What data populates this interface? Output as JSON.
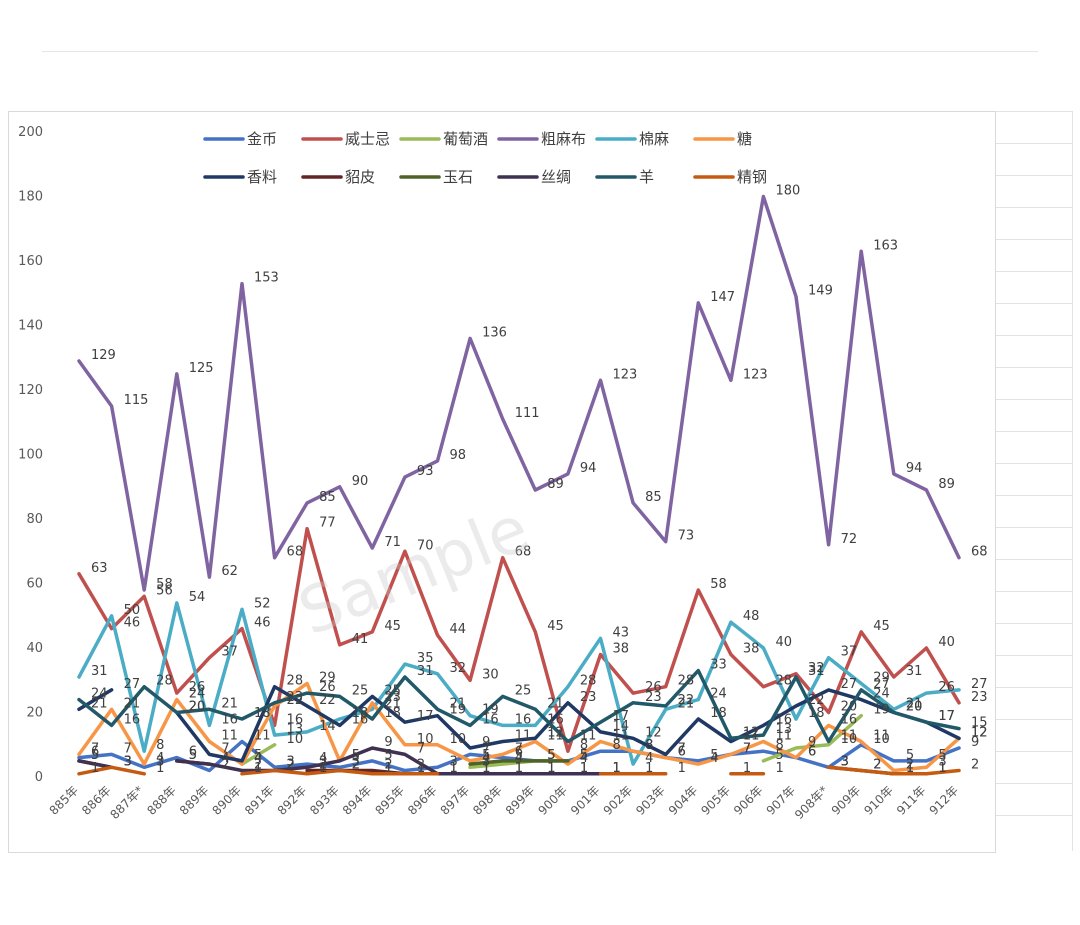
{
  "watermark": "Sample",
  "chart_data": {
    "type": "line",
    "title": "",
    "xlabel": "",
    "ylabel": "",
    "ylim": [
      0,
      200
    ],
    "yticks": [
      0,
      20,
      40,
      60,
      80,
      100,
      120,
      140,
      160,
      180,
      200
    ],
    "grid": false,
    "legend_position": "top",
    "categories": [
      "885年",
      "886年",
      "887年*",
      "888年",
      "889年",
      "890年",
      "891年",
      "892年",
      "893年",
      "894年",
      "895年",
      "896年",
      "897年",
      "898年",
      "899年",
      "900年",
      "901年",
      "902年",
      "903年",
      "904年",
      "905年",
      "906年",
      "907年",
      "908年*",
      "909年",
      "910年",
      "911年",
      "912年"
    ],
    "series": [
      {
        "name": "金币",
        "color": "#4472c4",
        "values": [
          6,
          7,
          3,
          6,
          2,
          11,
          3,
          4,
          3,
          5,
          2,
          3,
          7,
          6,
          5,
          5,
          8,
          8,
          6,
          5,
          7,
          8,
          6,
          3,
          10,
          5,
          5,
          9
        ]
      },
      {
        "name": "威士忌",
        "color": "#c0504d",
        "values": [
          63,
          46,
          56,
          26,
          37,
          46,
          16,
          77,
          41,
          45,
          70,
          44,
          30,
          68,
          45,
          8,
          38,
          26,
          28,
          58,
          38,
          28,
          32,
          20,
          45,
          31,
          40,
          23
        ]
      },
      {
        "name": "葡萄酒",
        "color": "#9bbb59",
        "values": [
          null,
          null,
          null,
          null,
          null,
          4,
          10,
          null,
          null,
          null,
          null,
          null,
          3,
          4,
          5,
          5,
          null,
          null,
          null,
          null,
          null,
          5,
          9,
          10,
          19,
          null,
          null,
          null
        ]
      },
      {
        "name": "粗麻布",
        "color": "#8064a2",
        "values": [
          129,
          115,
          58,
          125,
          62,
          153,
          68,
          85,
          90,
          71,
          93,
          98,
          136,
          111,
          89,
          94,
          123,
          85,
          73,
          147,
          123,
          180,
          149,
          72,
          163,
          94,
          89,
          68
        ]
      },
      {
        "name": "棉麻",
        "color": "#4bacc6",
        "values": [
          31,
          50,
          8,
          54,
          16,
          52,
          13,
          14,
          18,
          21,
          35,
          32,
          19,
          16,
          16,
          28,
          43,
          4,
          21,
          24,
          48,
          40,
          18,
          37,
          29,
          21,
          26,
          27
        ]
      },
      {
        "name": "糖",
        "color": "#f79646",
        "values": [
          7,
          21,
          4,
          24,
          11,
          4,
          22,
          29,
          5,
          23,
          10,
          10,
          5,
          7,
          11,
          4,
          11,
          8,
          6,
          4,
          7,
          11,
          6,
          16,
          11,
          2,
          3,
          12
        ]
      },
      {
        "name": "香料",
        "color": "#1f3864",
        "values": [
          21,
          27,
          null,
          20,
          7,
          5,
          28,
          22,
          16,
          25,
          17,
          19,
          9,
          11,
          12,
          23,
          14,
          12,
          7,
          18,
          11,
          16,
          22,
          27,
          24,
          20,
          17,
          12
        ]
      },
      {
        "name": "貂皮",
        "color": "#632523",
        "values": [
          5,
          3,
          null,
          5,
          4,
          null,
          null,
          2,
          2,
          2,
          1,
          null,
          1,
          1,
          1,
          1,
          1,
          null,
          null,
          null,
          null,
          null,
          null,
          3,
          2,
          1,
          1,
          null
        ]
      },
      {
        "name": "玉石",
        "color": "#4f6228",
        "values": [
          null,
          null,
          null,
          null,
          null,
          null,
          null,
          null,
          null,
          null,
          null,
          null,
          4,
          5,
          5,
          5,
          null,
          null,
          null,
          null,
          null,
          null,
          null,
          null,
          null,
          null,
          null,
          null
        ]
      },
      {
        "name": "丝绸",
        "color": "#3f3151",
        "values": [
          5,
          3,
          null,
          5,
          4,
          2,
          2,
          3,
          5,
          9,
          7,
          1,
          1,
          1,
          1,
          1,
          1,
          null,
          null,
          null,
          null,
          null,
          null,
          null,
          null,
          null,
          null,
          null
        ]
      },
      {
        "name": "羊",
        "color": "#215968",
        "values": [
          24,
          16,
          28,
          20,
          21,
          18,
          23,
          26,
          25,
          18,
          31,
          21,
          16,
          25,
          21,
          11,
          17,
          23,
          22,
          33,
          12,
          13,
          31,
          11,
          27,
          20,
          17,
          15
        ]
      },
      {
        "name": "精钢",
        "color": "#c55a11",
        "values": [
          1,
          3,
          1,
          null,
          null,
          1,
          2,
          1,
          2,
          1,
          1,
          1,
          null,
          null,
          null,
          null,
          1,
          1,
          1,
          null,
          1,
          1,
          null,
          3,
          2,
          1,
          1,
          2
        ]
      }
    ]
  }
}
